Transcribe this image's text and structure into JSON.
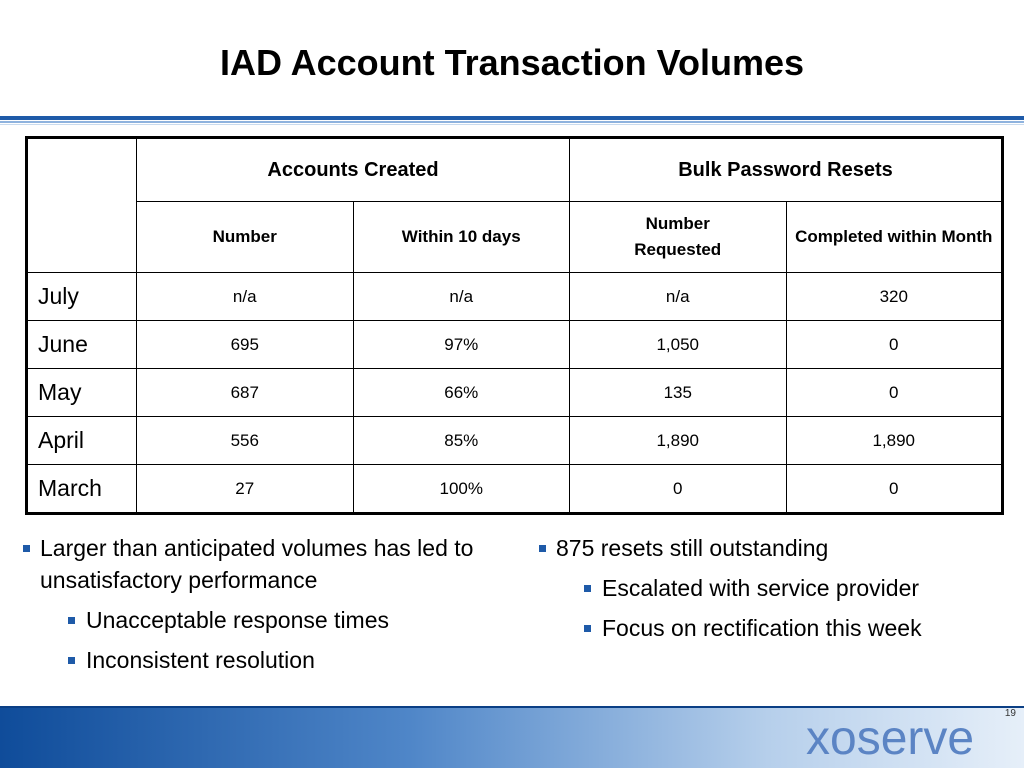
{
  "title": "IAD Account Transaction Volumes",
  "table": {
    "group_headers": [
      "Accounts Created",
      "Bulk Password Resets"
    ],
    "sub_headers": [
      "Number",
      "Within 10 days",
      "Number Requested",
      "Completed within Month"
    ],
    "rows": [
      {
        "month": "July",
        "cells": [
          "n/a",
          "n/a",
          "n/a",
          "320"
        ]
      },
      {
        "month": "June",
        "cells": [
          "695",
          "97%",
          "1,050",
          "0"
        ]
      },
      {
        "month": "May",
        "cells": [
          "687",
          "66%",
          "135",
          "0"
        ]
      },
      {
        "month": "April",
        "cells": [
          "556",
          "85%",
          "1,890",
          "1,890"
        ]
      },
      {
        "month": "March",
        "cells": [
          "27",
          "100%",
          "0",
          "0"
        ]
      }
    ]
  },
  "bullets_left": {
    "main": "Larger than anticipated volumes has led to unsatisfactory performance",
    "subs": [
      "Unacceptable response times",
      "Inconsistent resolution"
    ]
  },
  "bullets_right": {
    "main": "875 resets still outstanding",
    "subs": [
      "Escalated with service provider",
      "Focus on rectification this week"
    ]
  },
  "logo_text": "xoserve",
  "page_number": "19",
  "colors": {
    "accent": "#1e5aa8",
    "logo": "#5b84c4"
  }
}
